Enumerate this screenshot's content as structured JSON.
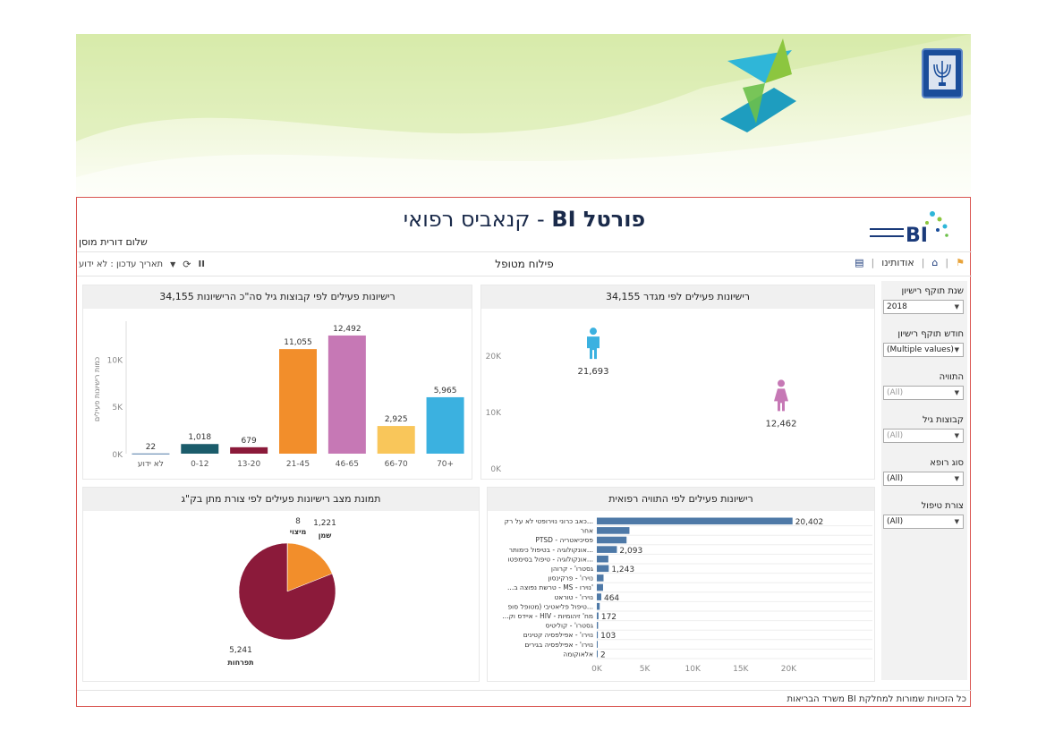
{
  "portal": {
    "title_bold": "פורטל BI",
    "title_rest": "- קנאביס רפואי",
    "greeting": "שלום דורית מוסן"
  },
  "toolbar": {
    "center_label": "פילוח מטופל",
    "about_label": "אודותינו",
    "update_date_label": "תאריך עדכון : לא ידוע"
  },
  "panels": {
    "age_title": "רישיונות פעילים לפי קבוצות גיל סה\"כ הרישיונות 34,155",
    "gender_title": "רישיונות פעילים לפי מגדר 34,155",
    "pie_title": "תמונת מצב רישיונות פעילים לפי צורת מתן בק\"ג",
    "indication_title": "רישיונות פעילים לפי התוויה רפואית"
  },
  "filters": [
    {
      "label": "שנת תוקף רישיון",
      "value": "2018",
      "dim": false
    },
    {
      "label": "חודש תוקף רישיון",
      "value": "(Multiple values)",
      "dim": false
    },
    {
      "label": "התוויה",
      "value": "(All)",
      "dim": true
    },
    {
      "label": "קבוצות גיל",
      "value": "(All)",
      "dim": true
    },
    {
      "label": "סוג רופא",
      "value": "(All)",
      "dim": false
    },
    {
      "label": "צורת טיפול",
      "value": "(All)",
      "dim": false
    }
  ],
  "footer": "כל הזכויות שמורות למחלקת BI משרד הבריאות",
  "chart_data": [
    {
      "type": "bar",
      "categories": [
        "לא ידוע",
        "0-12",
        "13-20",
        "21-45",
        "46-65",
        "66-70",
        "70+"
      ],
      "values": [
        22,
        1018,
        679,
        11055,
        12492,
        2925,
        5965
      ],
      "labels": [
        "22",
        "1,018",
        "679",
        "11,055",
        "12,492",
        "2,925",
        "5,965"
      ],
      "colors": [
        "#4e79a7",
        "#1b5c6b",
        "#8b1a3a",
        "#f28e2b",
        "#c678b5",
        "#f9c65a",
        "#3bb1e0"
      ],
      "ylabel": "כמות רישיונות פעילים",
      "yticks": [
        "0K",
        "5K",
        "10K"
      ],
      "ylim": [
        0,
        14000
      ]
    },
    {
      "type": "scatter",
      "categories": [
        "גבר",
        "אישה"
      ],
      "values": [
        21693,
        12462
      ],
      "labels": [
        "21,693",
        "12,462"
      ],
      "colors": [
        "#3bb1e0",
        "#c678b5"
      ],
      "yticks": [
        "0K",
        "10K",
        "20K"
      ],
      "ylim": [
        0,
        26000
      ]
    },
    {
      "type": "pie",
      "categories": [
        "תפרחות",
        "שמן",
        "מיצוי"
      ],
      "values": [
        5241,
        1221,
        8
      ],
      "labels": [
        "5,241",
        "1,221",
        "8"
      ],
      "colors": [
        "#8b1a3a",
        "#f28e2b",
        "#f9c65a"
      ]
    },
    {
      "type": "bar",
      "orientation": "horizontal",
      "categories": [
        "כאב כרוני נוירופטי לא על רק...",
        "אחר",
        "PTSD - פסיכיאטריה",
        "אונקולוגיה - בטיפול כימותר...",
        "אונקולוגיה - טיפול בסימפטו...",
        "גסטרו' - קרוהן",
        "נוירו' - פרקינסון",
        "...טרשת נפוצה ב - MS - נוירו'",
        "נוירו' - טוראט",
        "טיפול פליאטיבי (מטופל סופ...",
        "...איידס וק - HIV - מח' זיהומיות",
        "גסטרו' - קוליטיס",
        "נוירו' - אפילפסיה קטינים",
        "נוירו' - אפילפסיה בגירים",
        "אלאוקומה"
      ],
      "values": [
        20402,
        3400,
        3100,
        2093,
        1200,
        1243,
        700,
        650,
        464,
        300,
        172,
        130,
        103,
        60,
        2
      ],
      "value_labels": [
        "20,402",
        "",
        "",
        "2,093",
        "",
        "1,243",
        "",
        "",
        "464",
        "",
        "172",
        "",
        "103",
        "",
        "2"
      ],
      "color": "#4e79a7",
      "xticks": [
        "0K",
        "5K",
        "10K",
        "15K",
        "20K"
      ],
      "xlim": [
        0,
        25000
      ]
    }
  ]
}
